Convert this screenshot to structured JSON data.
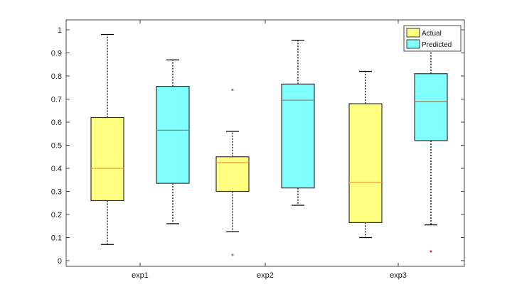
{
  "chart_data": {
    "type": "boxplot",
    "title": "",
    "xlabel": "",
    "ylabel": "",
    "categories": [
      "exp1",
      "exp2",
      "exp3"
    ],
    "ylim": [
      0,
      1
    ],
    "yticks": [
      {
        "value": 0,
        "label": "0"
      },
      {
        "value": 0.1,
        "label": "0.1"
      },
      {
        "value": 0.2,
        "label": "0.2"
      },
      {
        "value": 0.3,
        "label": "0.3"
      },
      {
        "value": 0.4,
        "label": "0.4"
      },
      {
        "value": 0.5,
        "label": "0.5"
      },
      {
        "value": 0.6,
        "label": "0.6"
      },
      {
        "value": 0.7,
        "label": "0.7"
      },
      {
        "value": 0.8,
        "label": "0.8"
      },
      {
        "value": 0.9,
        "label": "0.9"
      },
      {
        "value": 1,
        "label": "1"
      }
    ],
    "grid": false,
    "legend_position": "top-right",
    "series": [
      {
        "name": "Actual",
        "fill": "#ffff80",
        "median_color": "#e8a040",
        "outlier_color": "#888888",
        "boxes": [
          {
            "min": 0.07,
            "q1": 0.26,
            "median": 0.4,
            "q3": 0.62,
            "max": 0.98,
            "outliers": []
          },
          {
            "min": 0.125,
            "q1": 0.3,
            "median": 0.425,
            "q3": 0.45,
            "max": 0.56,
            "outliers": [
              0.74,
              0.025
            ]
          },
          {
            "min": 0.1,
            "q1": 0.165,
            "median": 0.34,
            "q3": 0.68,
            "max": 0.82,
            "outliers": []
          }
        ]
      },
      {
        "name": "Predicted",
        "fill": "#80ffff",
        "median_color": "#a08060",
        "outlier_color": "#cc4444",
        "boxes": [
          {
            "min": 0.16,
            "q1": 0.335,
            "median": 0.565,
            "q3": 0.755,
            "max": 0.87,
            "outliers": []
          },
          {
            "min": 0.24,
            "q1": 0.315,
            "median": 0.695,
            "q3": 0.765,
            "max": 0.955,
            "outliers": []
          },
          {
            "min": 0.155,
            "q1": 0.52,
            "median": 0.69,
            "q3": 0.81,
            "max": 0.92,
            "outliers": [
              0.04
            ]
          }
        ]
      }
    ]
  }
}
